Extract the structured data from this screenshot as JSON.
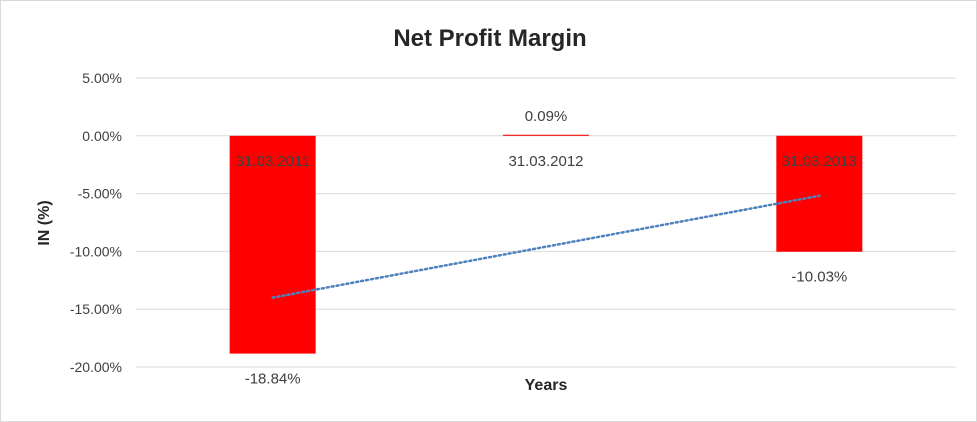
{
  "chart_data": {
    "type": "bar",
    "title": "Net Profit Margin",
    "xlabel": "Years",
    "ylabel": "IN (%)",
    "categories": [
      "31.03.2011",
      "31.03.2012",
      "31.03.2013"
    ],
    "series": [
      {
        "values": [
          -18.84,
          0.09,
          -10.03
        ]
      }
    ],
    "data_labels": [
      "-18.84%",
      "0.09%",
      "-10.03%"
    ],
    "ylim": [
      -20,
      5
    ],
    "yticks": [
      5,
      0,
      -5,
      -10,
      -15,
      -20
    ],
    "ytick_labels": [
      "5.00%",
      "0.00%",
      "-5.00%",
      "-10.00%",
      "-15.00%",
      "-20.00%"
    ],
    "grid": true,
    "legend": "none",
    "trendline": {
      "type": "linear",
      "style": "dotted",
      "color": "#4f81bd"
    },
    "bar_color": "#ff0000"
  }
}
